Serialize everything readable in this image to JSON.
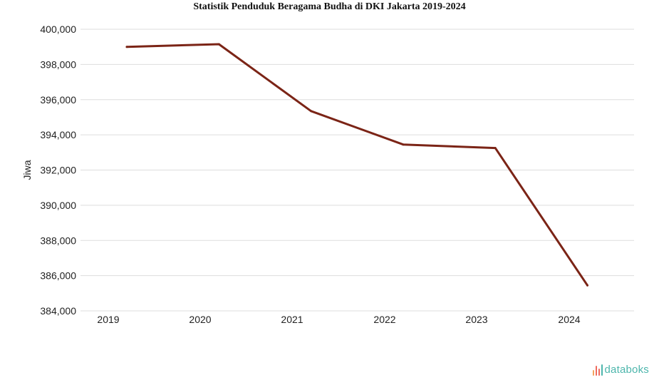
{
  "chart_data": {
    "type": "line",
    "title": "Statistik Penduduk Beragama Budha di DKI Jakarta 2019-2024",
    "xlabel": "",
    "ylabel": "Jiwa",
    "categories": [
      "2019",
      "2020",
      "2021",
      "2022",
      "2023",
      "2024"
    ],
    "series": [
      {
        "values": [
          399000,
          399150,
          395350,
          393450,
          393250,
          385450
        ],
        "color": "#7b2416"
      }
    ],
    "ylim": [
      384000,
      400000
    ],
    "yticks": [
      400000,
      398000,
      396000,
      394000,
      392000,
      390000,
      388000,
      386000,
      384000
    ],
    "ytick_labels": [
      "400,000",
      "398,000",
      "396,000",
      "394,000",
      "392,000",
      "390,000",
      "388,000",
      "386,000",
      "384,000"
    ],
    "grid": true,
    "legend": "none"
  },
  "watermark": {
    "text": "databoks",
    "icon": "bar-chart-icon",
    "color": "#4db6ac"
  }
}
